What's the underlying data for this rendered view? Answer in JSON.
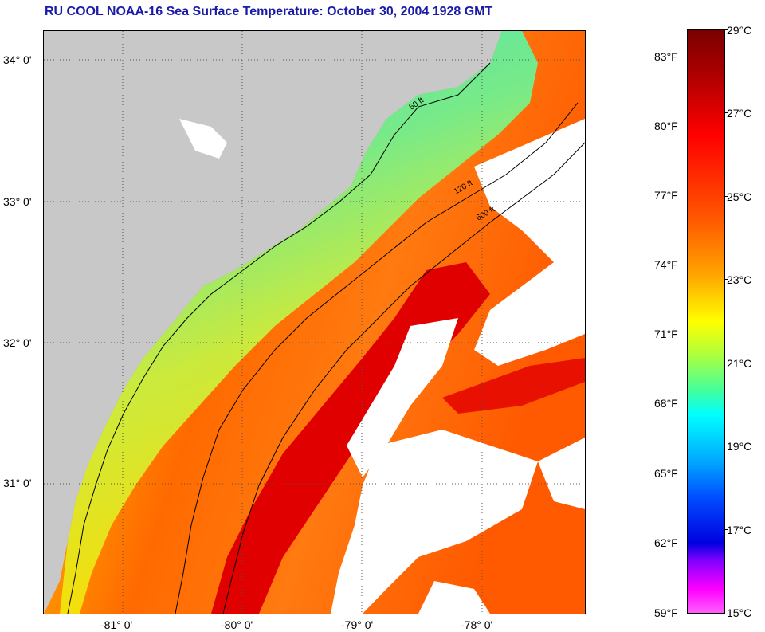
{
  "title": "RU COOL  NOAA-16  Sea Surface Temperature:  October 30, 2004 1928 GMT",
  "map": {
    "lat_labels": [
      "34° 0'",
      "33° 0'",
      "32° 0'",
      "31° 0'"
    ],
    "lon_labels": [
      "-81° 0'",
      "-80° 0'",
      "-79° 0'",
      "-78° 0'"
    ],
    "contour_labels": [
      "50 ft",
      "120 ft",
      "600 ft"
    ],
    "colors": {
      "land": "#c8c8c8",
      "cloud": "#ffffff",
      "shelf": "#40e8c0",
      "gulfstream": "#e00000",
      "offshore": "#ff6a00"
    }
  },
  "colorbar": {
    "fahrenheit": [
      "83°F",
      "80°F",
      "77°F",
      "74°F",
      "71°F",
      "68°F",
      "65°F",
      "62°F",
      "59°F"
    ],
    "celsius": [
      "29°C",
      "27°C",
      "25°C",
      "23°C",
      "21°C",
      "19°C",
      "17°C",
      "15°C"
    ]
  }
}
